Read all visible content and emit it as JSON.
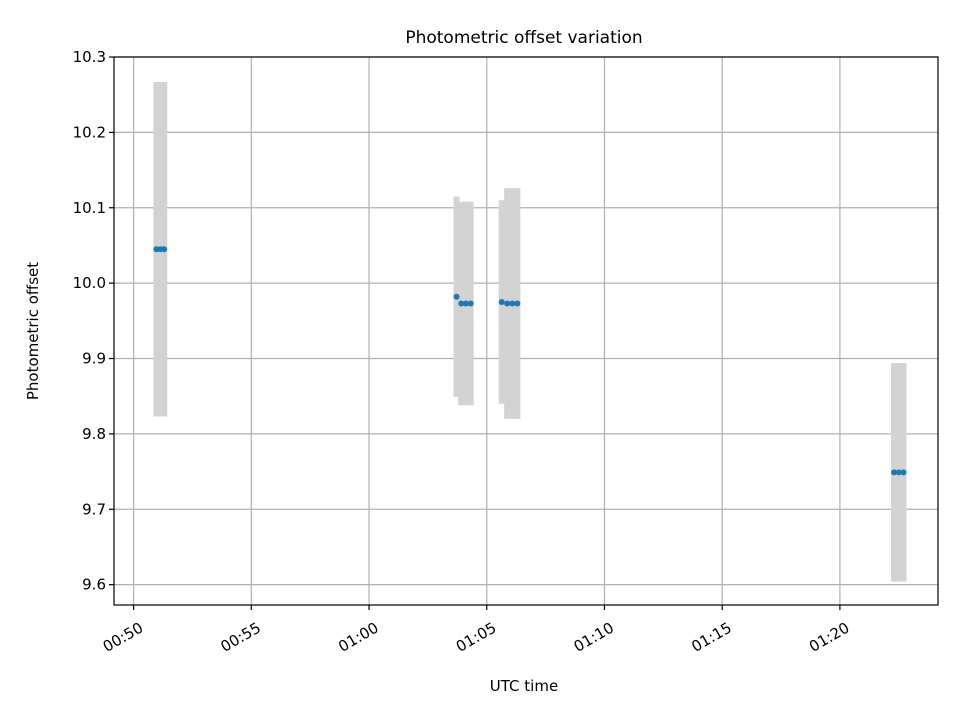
{
  "chart_data": {
    "type": "scatter",
    "title": "Photometric offset variation",
    "xlabel": "UTC time",
    "ylabel": "Photometric offset",
    "x_format": "HH:MM",
    "xlim": [
      "00:49:10",
      "01:24:10"
    ],
    "ylim": [
      9.573,
      10.3
    ],
    "x_ticks": [
      "00:50",
      "00:55",
      "01:00",
      "01:05",
      "01:10",
      "01:15",
      "01:20"
    ],
    "y_ticks": [
      "9.6",
      "9.7",
      "9.8",
      "9.9",
      "10.0",
      "10.1",
      "10.2",
      "10.3"
    ],
    "grid": true,
    "legend": null,
    "colors": {
      "points": "#1f77b4",
      "errorbars": "#d3d3d3",
      "grid": "#b0b0b0"
    },
    "series": [
      {
        "points": [
          {
            "x": "00:50:58",
            "y": 10.045,
            "err": 0.222
          },
          {
            "x": "00:51:08",
            "y": 10.045,
            "err": 0.222
          },
          {
            "x": "00:51:18",
            "y": 10.045,
            "err": 0.222
          },
          {
            "x": "01:03:43",
            "y": 9.982,
            "err": 0.133
          },
          {
            "x": "01:03:55",
            "y": 9.973,
            "err": 0.135
          },
          {
            "x": "01:04:07",
            "y": 9.973,
            "err": 0.135
          },
          {
            "x": "01:04:19",
            "y": 9.973,
            "err": 0.135
          },
          {
            "x": "01:05:38",
            "y": 9.975,
            "err": 0.135
          },
          {
            "x": "01:05:52",
            "y": 9.973,
            "err": 0.153
          },
          {
            "x": "01:06:05",
            "y": 9.973,
            "err": 0.153
          },
          {
            "x": "01:06:18",
            "y": 9.973,
            "err": 0.153
          },
          {
            "x": "01:22:18",
            "y": 9.749,
            "err": 0.145
          },
          {
            "x": "01:22:30",
            "y": 9.749,
            "err": 0.145
          },
          {
            "x": "01:22:42",
            "y": 9.749,
            "err": 0.145
          }
        ]
      }
    ]
  }
}
